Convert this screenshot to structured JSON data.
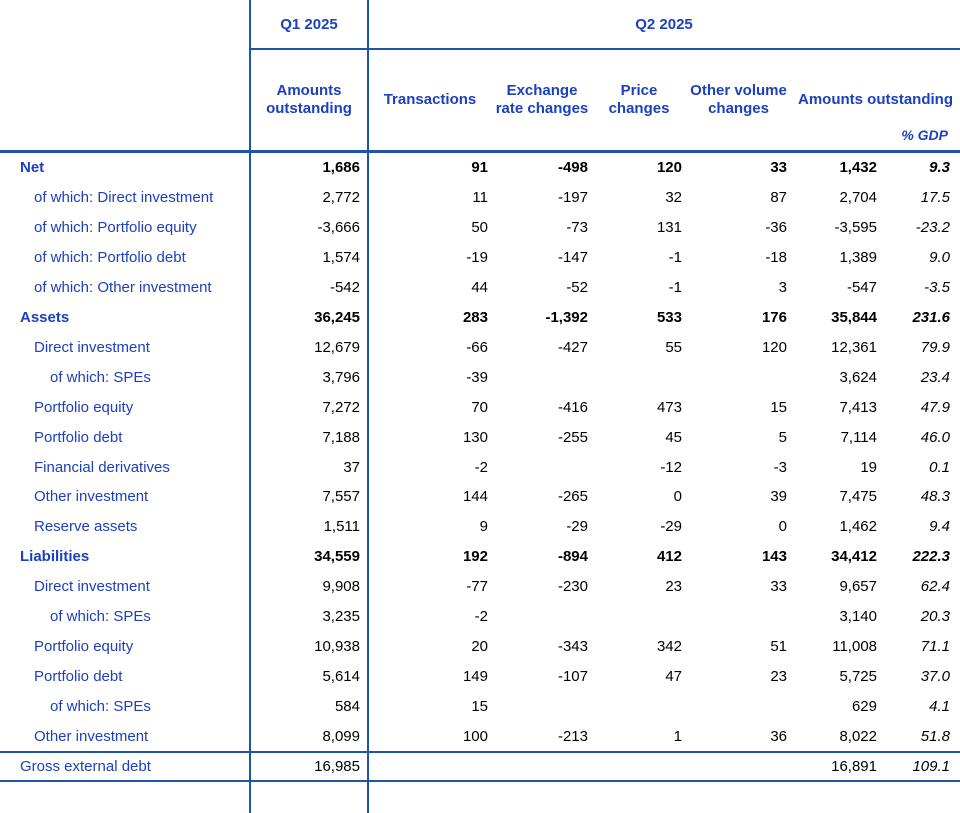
{
  "colors": {
    "text_blue": "#1c40be",
    "border_blue": "#1f55a6",
    "number_black": "#000000"
  },
  "header": {
    "q1_label": "Q1 2025",
    "q2_label": "Q2 2025",
    "col_amounts_q1": "Amounts outstanding",
    "col_transactions": "Transactions",
    "col_exchange_rate": "Exchange rate changes",
    "col_price": "Price changes",
    "col_other_volume": "Other volume changes",
    "col_amounts_q2": "Amounts outstanding",
    "col_pct_gdp": "% GDP"
  },
  "rows": [
    {
      "label": "Net",
      "indent": 0,
      "bold": true,
      "values": [
        "1,686",
        "91",
        "-498",
        "120",
        "33",
        "1,432",
        "9.3"
      ]
    },
    {
      "label": "of which: Direct investment",
      "indent": 1,
      "bold": false,
      "values": [
        "2,772",
        "11",
        "-197",
        "32",
        "87",
        "2,704",
        "17.5"
      ]
    },
    {
      "label": "of which: Portfolio equity",
      "indent": 1,
      "bold": false,
      "values": [
        "-3,666",
        "50",
        "-73",
        "131",
        "-36",
        "-3,595",
        "-23.2"
      ]
    },
    {
      "label": "of which: Portfolio debt",
      "indent": 1,
      "bold": false,
      "values": [
        "1,574",
        "-19",
        "-147",
        "-1",
        "-18",
        "1,389",
        "9.0"
      ]
    },
    {
      "label": "of which: Other investment",
      "indent": 1,
      "bold": false,
      "values": [
        "-542",
        "44",
        "-52",
        "-1",
        "3",
        "-547",
        "-3.5"
      ]
    },
    {
      "label": "Assets",
      "indent": 0,
      "bold": true,
      "values": [
        "36,245",
        "283",
        "-1,392",
        "533",
        "176",
        "35,844",
        "231.6"
      ]
    },
    {
      "label": "Direct investment",
      "indent": 1,
      "bold": false,
      "values": [
        "12,679",
        "-66",
        "-427",
        "55",
        "120",
        "12,361",
        "79.9"
      ]
    },
    {
      "label": "of which: SPEs",
      "indent": 2,
      "bold": false,
      "values": [
        "3,796",
        "-39",
        "",
        "",
        "",
        "3,624",
        "23.4"
      ]
    },
    {
      "label": "Portfolio equity",
      "indent": 1,
      "bold": false,
      "values": [
        "7,272",
        "70",
        "-416",
        "473",
        "15",
        "7,413",
        "47.9"
      ]
    },
    {
      "label": "Portfolio debt",
      "indent": 1,
      "bold": false,
      "values": [
        "7,188",
        "130",
        "-255",
        "45",
        "5",
        "7,114",
        "46.0"
      ]
    },
    {
      "label": "Financial derivatives",
      "indent": 1,
      "bold": false,
      "values": [
        "37",
        "-2",
        "",
        "-12",
        "-3",
        "19",
        "0.1"
      ]
    },
    {
      "label": "Other investment",
      "indent": 1,
      "bold": false,
      "values": [
        "7,557",
        "144",
        "-265",
        "0",
        "39",
        "7,475",
        "48.3"
      ]
    },
    {
      "label": "Reserve assets",
      "indent": 1,
      "bold": false,
      "values": [
        "1,511",
        "9",
        "-29",
        "-29",
        "0",
        "1,462",
        "9.4"
      ]
    },
    {
      "label": "Liabilities",
      "indent": 0,
      "bold": true,
      "values": [
        "34,559",
        "192",
        "-894",
        "412",
        "143",
        "34,412",
        "222.3"
      ]
    },
    {
      "label": "Direct investment",
      "indent": 1,
      "bold": false,
      "values": [
        "9,908",
        "-77",
        "-230",
        "23",
        "33",
        "9,657",
        "62.4"
      ]
    },
    {
      "label": "of which: SPEs",
      "indent": 2,
      "bold": false,
      "values": [
        "3,235",
        "-2",
        "",
        "",
        "",
        "3,140",
        "20.3"
      ]
    },
    {
      "label": "Portfolio equity",
      "indent": 1,
      "bold": false,
      "values": [
        "10,938",
        "20",
        "-343",
        "342",
        "51",
        "11,008",
        "71.1"
      ]
    },
    {
      "label": "Portfolio debt",
      "indent": 1,
      "bold": false,
      "values": [
        "5,614",
        "149",
        "-107",
        "47",
        "23",
        "5,725",
        "37.0"
      ]
    },
    {
      "label": "of which: SPEs",
      "indent": 2,
      "bold": false,
      "values": [
        "584",
        "15",
        "",
        "",
        "",
        "629",
        "4.1"
      ]
    },
    {
      "label": "Other investment",
      "indent": 1,
      "bold": false,
      "values": [
        "8,099",
        "100",
        "-213",
        "1",
        "36",
        "8,022",
        "51.8"
      ]
    }
  ],
  "footer_row": {
    "label": "Gross external debt",
    "indent": 0,
    "bold": false,
    "values": [
      "16,985",
      "",
      "",
      "",
      "",
      "16,891",
      "109.1"
    ]
  }
}
